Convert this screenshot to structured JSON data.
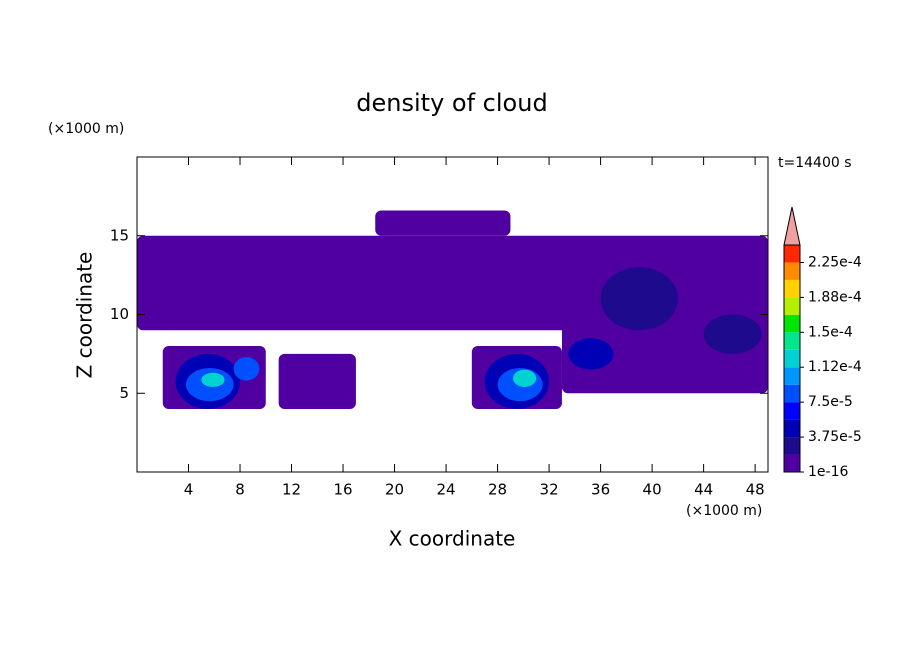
{
  "chart_data": {
    "type": "contour",
    "title": "density of cloud",
    "xlabel": "X coordinate",
    "ylabel": "Z coordinate",
    "x_unit": "(×1000 m)",
    "y_unit": "(×1000 m)",
    "annotation": "t=14400 s",
    "xlim": [
      0,
      49
    ],
    "ylim": [
      0,
      20
    ],
    "xticks": [
      4,
      8,
      12,
      16,
      20,
      24,
      28,
      32,
      36,
      40,
      44,
      48
    ],
    "yticks": [
      5,
      10,
      15
    ],
    "levels": [
      1e-16,
      1.875e-05,
      3.75e-05,
      5.625e-05,
      7.5e-05,
      9.375e-05,
      0.0001125,
      0.00013125,
      0.00015,
      0.00016875,
      0.0001875,
      0.00020625,
      0.000225,
      0.00024375
    ],
    "colors": [
      "#5000a0",
      "#1e0a8c",
      "#0000b4",
      "#0000ff",
      "#0050ff",
      "#0096ff",
      "#00d2d2",
      "#00e68c",
      "#00e600",
      "#b4f000",
      "#ffd200",
      "#ff8c00",
      "#ff2800"
    ],
    "extend_color": "#f0a0a0",
    "colorbar_ticks": [
      {
        "value": 1e-16,
        "label": "1e-16"
      },
      {
        "value": 3.75e-05,
        "label": "3.75e-5"
      },
      {
        "value": 7.5e-05,
        "label": "7.5e-5"
      },
      {
        "value": 0.0001125,
        "label": "1.12e-4"
      },
      {
        "value": 0.00015,
        "label": "1.5e-4"
      },
      {
        "value": 0.0001875,
        "label": "1.88e-4"
      },
      {
        "value": 0.000225,
        "label": "2.25e-4"
      }
    ],
    "regions": [
      {
        "x": [
          0,
          49
        ],
        "z": [
          9,
          15
        ],
        "value": 1e-16
      },
      {
        "x": [
          18.5,
          29
        ],
        "z": [
          15,
          16.6
        ],
        "value": 1e-16
      },
      {
        "x": [
          2,
          10
        ],
        "z": [
          4,
          8
        ],
        "value": 1e-16
      },
      {
        "x": [
          11,
          17
        ],
        "z": [
          4,
          7.5
        ],
        "value": 1e-16
      },
      {
        "x": [
          26,
          33
        ],
        "z": [
          4,
          8
        ],
        "value": 1e-16
      },
      {
        "x": [
          33,
          49
        ],
        "z": [
          5,
          10
        ],
        "value": 1e-16
      },
      {
        "x": [
          36,
          42
        ],
        "z": [
          9,
          13
        ],
        "value": 1.875e-05
      },
      {
        "x": [
          44,
          48.5
        ],
        "z": [
          7.5,
          10
        ],
        "value": 1.875e-05
      },
      {
        "x": [
          33.5,
          37
        ],
        "z": [
          6.5,
          8.5
        ],
        "value": 3.75e-05
      },
      {
        "x": [
          3,
          8
        ],
        "z": [
          4,
          7.5
        ],
        "value": 3.75e-05
      },
      {
        "x": [
          7.5,
          9.5
        ],
        "z": [
          5.8,
          7.3
        ],
        "value": 7.5e-05
      },
      {
        "x": [
          3.8,
          7.5
        ],
        "z": [
          4.5,
          6.6
        ],
        "value": 7.5e-05
      },
      {
        "x": [
          5,
          6.8
        ],
        "z": [
          5.4,
          6.3
        ],
        "value": 0.0001125
      },
      {
        "x": [
          27,
          32
        ],
        "z": [
          4,
          7.5
        ],
        "value": 3.75e-05
      },
      {
        "x": [
          28,
          31.5
        ],
        "z": [
          4.5,
          6.6
        ],
        "value": 7.5e-05
      },
      {
        "x": [
          29.2,
          31
        ],
        "z": [
          5.4,
          6.5
        ],
        "value": 0.0001125
      }
    ]
  }
}
